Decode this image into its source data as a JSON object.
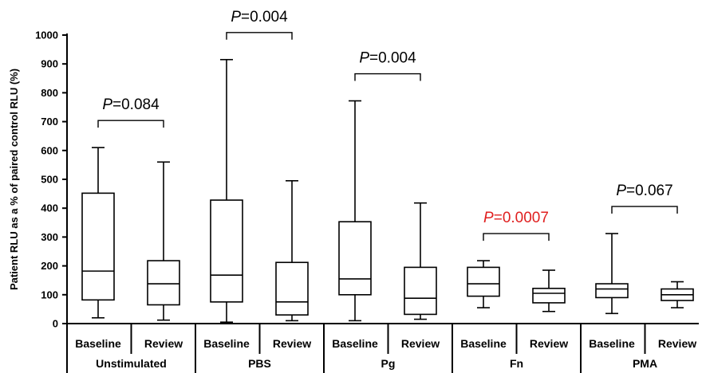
{
  "chart_data": {
    "type": "boxplot",
    "ylabel": "Patient RLU as a % of paired control RLU (%)",
    "ylim": [
      0,
      1000
    ],
    "yticks": [
      0,
      100,
      200,
      300,
      400,
      500,
      600,
      700,
      800,
      900,
      1000
    ],
    "grid": false,
    "groups": [
      {
        "name": "Unstimulated",
        "p_value": {
          "prefix": "P",
          "text": "=0.084",
          "color": "#000000"
        },
        "boxes": [
          {
            "label": "Baseline",
            "min": 20,
            "q1": 82,
            "median": 182,
            "q3": 452,
            "max": 610
          },
          {
            "label": "Review",
            "min": 12,
            "q1": 65,
            "median": 138,
            "q3": 218,
            "max": 560
          }
        ]
      },
      {
        "name": "PBS",
        "p_value": {
          "prefix": "P",
          "text": "=0.004",
          "color": "#000000"
        },
        "boxes": [
          {
            "label": "Baseline",
            "min": 5,
            "q1": 75,
            "median": 168,
            "q3": 428,
            "max": 915
          },
          {
            "label": "Review",
            "min": 10,
            "q1": 30,
            "median": 75,
            "q3": 212,
            "max": 495
          }
        ]
      },
      {
        "name": "Pg",
        "p_value": {
          "prefix": "P",
          "text": "=0.004",
          "color": "#000000"
        },
        "boxes": [
          {
            "label": "Baseline",
            "min": 10,
            "q1": 100,
            "median": 155,
            "q3": 353,
            "max": 772
          },
          {
            "label": "Review",
            "min": 15,
            "q1": 32,
            "median": 88,
            "q3": 195,
            "max": 418
          }
        ]
      },
      {
        "name": "Fn",
        "p_value": {
          "prefix": "P",
          "text": "=0.0007",
          "color": "#e02020"
        },
        "boxes": [
          {
            "label": "Baseline",
            "min": 55,
            "q1": 95,
            "median": 138,
            "q3": 195,
            "max": 218
          },
          {
            "label": "Review",
            "min": 42,
            "q1": 72,
            "median": 105,
            "q3": 122,
            "max": 185
          }
        ]
      },
      {
        "name": "PMA",
        "p_value": {
          "prefix": "P",
          "text": "=0.067",
          "color": "#000000"
        },
        "boxes": [
          {
            "label": "Baseline",
            "min": 35,
            "q1": 90,
            "median": 120,
            "q3": 138,
            "max": 312
          },
          {
            "label": "Review",
            "min": 55,
            "q1": 80,
            "median": 100,
            "q3": 120,
            "max": 145
          }
        ]
      }
    ]
  }
}
